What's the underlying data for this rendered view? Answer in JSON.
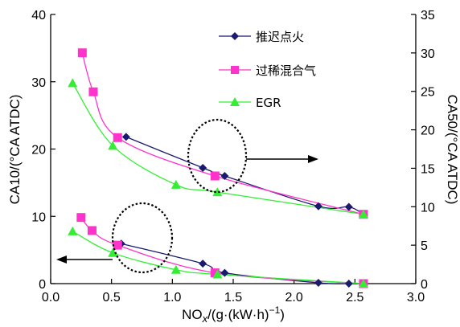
{
  "chart_data": {
    "type": "line",
    "xlabel": "NOx/(g·(kW·h)−1)",
    "xlabel_parts": {
      "base": "NO",
      "sub": "x",
      "mid": "/(g·(kW·h)",
      "sup": "−1",
      "end": ")"
    },
    "ylabel_left": "CA10/(°CA ATDC)",
    "ylabel_right": "CA50/(°CA ATDC)",
    "xlim": [
      0,
      3.0
    ],
    "ylim_left": [
      0,
      40
    ],
    "ylim_right": [
      0,
      35
    ],
    "xticks": [
      "0.0",
      "0.5",
      "1.0",
      "1.5",
      "2.0",
      "2.5",
      "3.0"
    ],
    "yticks_left": [
      "0",
      "10",
      "20",
      "30",
      "40"
    ],
    "yticks_right": [
      "0",
      "5",
      "10",
      "15",
      "20",
      "25",
      "30",
      "35"
    ],
    "legend_position": "top-right",
    "series": [
      {
        "name": "推迟点火",
        "color": "#1a1a6e",
        "marker": "diamond",
        "axis": "left",
        "group": "CA10",
        "x": [
          0.62,
          1.25,
          1.43,
          2.2,
          2.45,
          2.57
        ],
        "y": [
          21.8,
          17.2,
          16.0,
          11.5,
          11.4,
          10.3
        ]
      },
      {
        "name": "过稀混合气",
        "color": "#ff33cc",
        "marker": "square",
        "axis": "left",
        "group": "CA10",
        "x": [
          0.26,
          0.35,
          0.55,
          1.35,
          2.57
        ],
        "y": [
          34.3,
          28.5,
          21.7,
          16.0,
          10.3
        ]
      },
      {
        "name": "EGR",
        "color": "#33ee33",
        "marker": "triangle",
        "axis": "left",
        "group": "CA10",
        "x": [
          0.18,
          0.51,
          1.03,
          1.37,
          2.57
        ],
        "y": [
          29.8,
          20.5,
          14.7,
          13.6,
          10.3
        ]
      },
      {
        "name": "推迟点火",
        "color": "#1a1a6e",
        "marker": "diamond",
        "axis": "right",
        "group": "CA50",
        "x": [
          0.58,
          1.25,
          1.43,
          2.2,
          2.45,
          2.57
        ],
        "y": [
          5.2,
          2.6,
          1.4,
          0.1,
          0.0,
          0.0
        ]
      },
      {
        "name": "过稀混合气",
        "color": "#ff33cc",
        "marker": "square",
        "axis": "right",
        "group": "CA50",
        "x": [
          0.25,
          0.34,
          0.55,
          1.35,
          2.57
        ],
        "y": [
          8.6,
          6.9,
          5.0,
          1.4,
          0.0
        ]
      },
      {
        "name": "EGR",
        "color": "#33ee33",
        "marker": "triangle",
        "axis": "right",
        "group": "CA50",
        "x": [
          0.18,
          0.51,
          1.03,
          1.37,
          2.57
        ],
        "y": [
          6.8,
          4.0,
          1.8,
          1.2,
          0.0
        ]
      }
    ],
    "annotations": [
      {
        "type": "ellipse-dashed",
        "group": "CA10",
        "arrow": "right"
      },
      {
        "type": "ellipse-dashed",
        "group": "CA50",
        "arrow": "left"
      }
    ]
  }
}
